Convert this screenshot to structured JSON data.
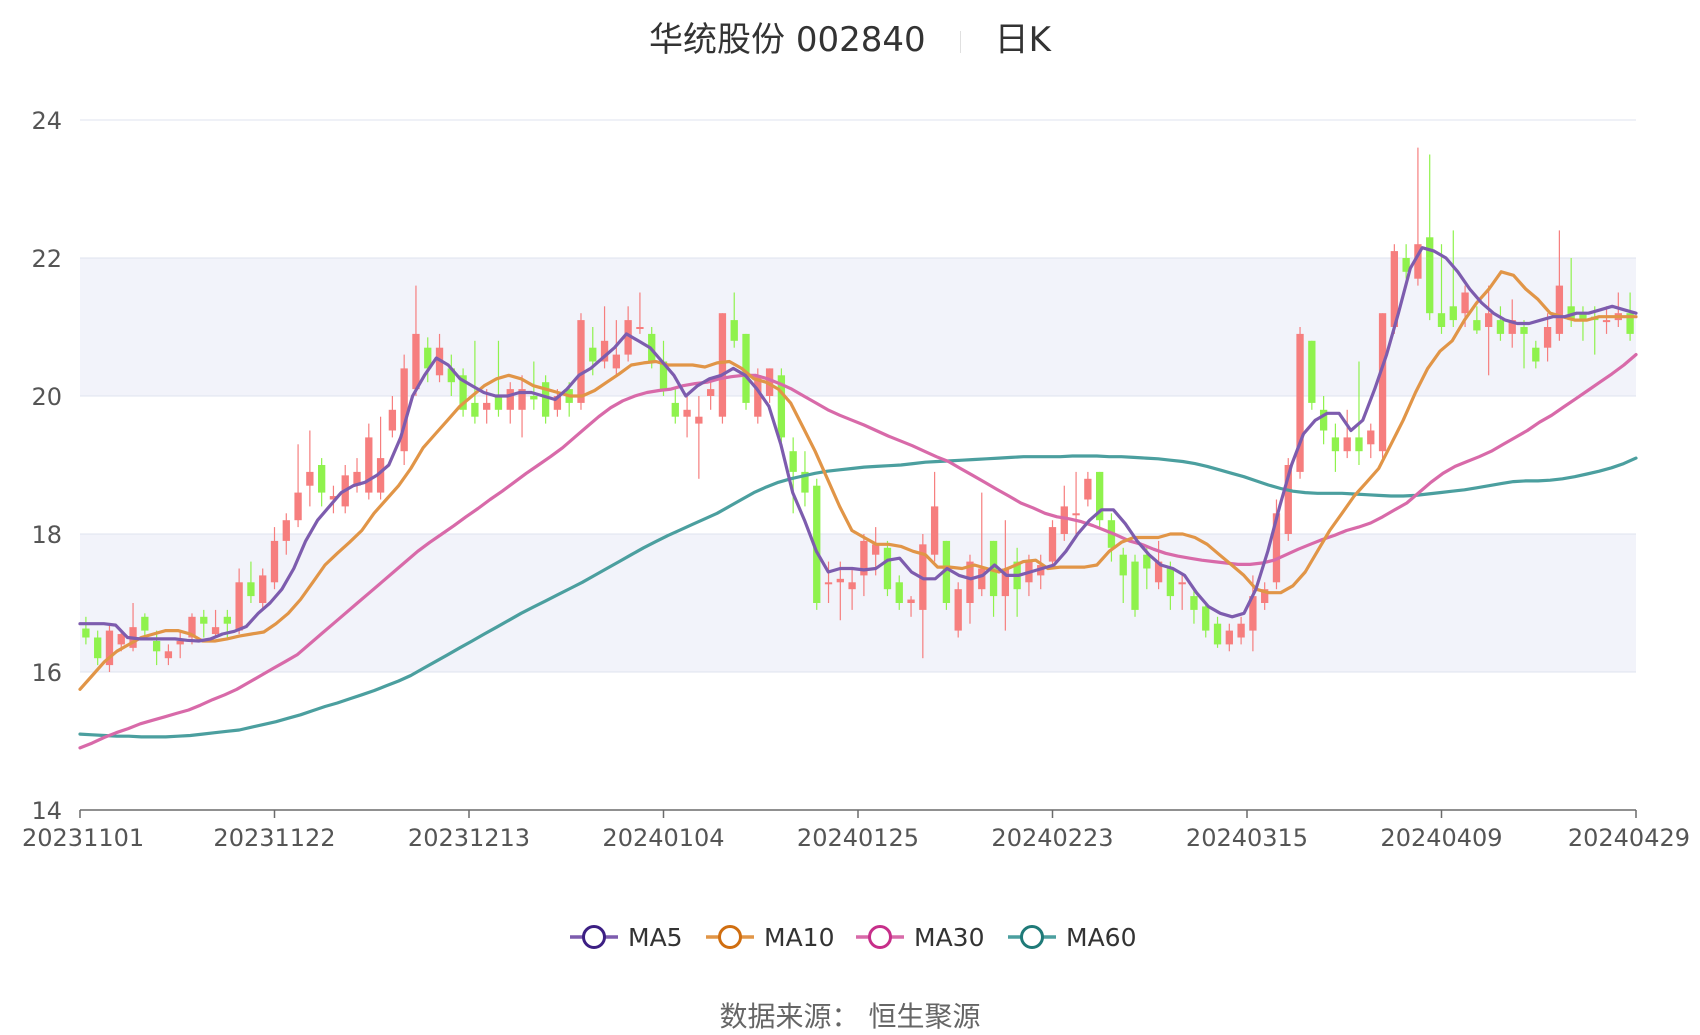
{
  "header": {
    "title": "华统股份 002840",
    "period": "日K"
  },
  "source": "数据来源： 恒生聚源",
  "chart_data": {
    "type": "candlestick",
    "ylim": [
      14,
      24
    ],
    "y_ticks": [
      "14",
      "16",
      "18",
      "20",
      "22",
      "24"
    ],
    "x_ticks": [
      "20231101",
      "20231122",
      "20231213",
      "20240104",
      "20240125",
      "20240223",
      "20240315",
      "20240409",
      "20240429"
    ],
    "colors": {
      "up": "#f67e7e",
      "down": "#8ff24d",
      "MA5": "#7d5cae",
      "MA10": "#e19547",
      "MA30": "#d86aa9",
      "MA60": "#4b9f9f",
      "band": "#f2f3fa",
      "grid": "#dfe3ef",
      "axis": "#6b6b6b"
    },
    "legend": [
      {
        "name": "MA5",
        "color": "#7d5cae",
        "ring": "#3c1f83"
      },
      {
        "name": "MA10",
        "color": "#e19547",
        "ring": "#d06e10"
      },
      {
        "name": "MA30",
        "color": "#d86aa9",
        "ring": "#c72f8a"
      },
      {
        "name": "MA60",
        "color": "#4b9f9f",
        "ring": "#1f7a78"
      }
    ],
    "candles": [
      {
        "o": 16.63,
        "c": 16.5,
        "h": 16.8,
        "l": 16.4
      },
      {
        "o": 16.5,
        "c": 16.2,
        "h": 16.6,
        "l": 16.1
      },
      {
        "o": 16.1,
        "c": 16.6,
        "h": 16.7,
        "l": 16.0
      },
      {
        "o": 16.4,
        "c": 16.55,
        "h": 16.6,
        "l": 16.3
      },
      {
        "o": 16.35,
        "c": 16.65,
        "h": 17.0,
        "l": 16.3
      },
      {
        "o": 16.8,
        "c": 16.6,
        "h": 16.85,
        "l": 16.5
      },
      {
        "o": 16.45,
        "c": 16.3,
        "h": 16.6,
        "l": 16.1
      },
      {
        "o": 16.2,
        "c": 16.3,
        "h": 16.4,
        "l": 16.1
      },
      {
        "o": 16.4,
        "c": 16.45,
        "h": 16.6,
        "l": 16.2
      },
      {
        "o": 16.5,
        "c": 16.8,
        "h": 16.85,
        "l": 16.4
      },
      {
        "o": 16.8,
        "c": 16.7,
        "h": 16.9,
        "l": 16.5
      },
      {
        "o": 16.55,
        "c": 16.65,
        "h": 16.9,
        "l": 16.5
      },
      {
        "o": 16.8,
        "c": 16.7,
        "h": 16.9,
        "l": 16.5
      },
      {
        "o": 16.6,
        "c": 17.3,
        "h": 17.5,
        "l": 16.55
      },
      {
        "o": 17.3,
        "c": 17.1,
        "h": 17.6,
        "l": 17.0
      },
      {
        "o": 17.0,
        "c": 17.4,
        "h": 17.5,
        "l": 16.9
      },
      {
        "o": 17.3,
        "c": 17.9,
        "h": 18.1,
        "l": 17.2
      },
      {
        "o": 17.9,
        "c": 18.2,
        "h": 18.3,
        "l": 17.7
      },
      {
        "o": 18.2,
        "c": 18.6,
        "h": 19.3,
        "l": 18.1
      },
      {
        "o": 18.7,
        "c": 18.9,
        "h": 19.5,
        "l": 18.4
      },
      {
        "o": 19.0,
        "c": 18.6,
        "h": 19.1,
        "l": 18.4
      },
      {
        "o": 18.5,
        "c": 18.55,
        "h": 18.7,
        "l": 18.3
      },
      {
        "o": 18.4,
        "c": 18.85,
        "h": 19.0,
        "l": 18.3
      },
      {
        "o": 18.7,
        "c": 18.9,
        "h": 19.1,
        "l": 18.6
      },
      {
        "o": 18.6,
        "c": 19.4,
        "h": 19.6,
        "l": 18.5
      },
      {
        "o": 18.6,
        "c": 19.1,
        "h": 19.7,
        "l": 18.5
      },
      {
        "o": 19.5,
        "c": 19.8,
        "h": 20.0,
        "l": 19.4
      },
      {
        "o": 19.2,
        "c": 20.4,
        "h": 20.6,
        "l": 19.0
      },
      {
        "o": 20.1,
        "c": 20.9,
        "h": 21.6,
        "l": 20.0
      },
      {
        "o": 20.7,
        "c": 20.4,
        "h": 20.85,
        "l": 20.2
      },
      {
        "o": 20.3,
        "c": 20.7,
        "h": 20.9,
        "l": 20.2
      },
      {
        "o": 20.4,
        "c": 20.2,
        "h": 20.6,
        "l": 20.0
      },
      {
        "o": 20.3,
        "c": 19.8,
        "h": 20.4,
        "l": 19.7
      },
      {
        "o": 19.9,
        "c": 19.7,
        "h": 20.8,
        "l": 19.6
      },
      {
        "o": 19.8,
        "c": 19.9,
        "h": 20.1,
        "l": 19.6
      },
      {
        "o": 20.0,
        "c": 19.8,
        "h": 20.8,
        "l": 19.7
      },
      {
        "o": 19.8,
        "c": 20.1,
        "h": 20.2,
        "l": 19.6
      },
      {
        "o": 19.8,
        "c": 20.1,
        "h": 20.3,
        "l": 19.4
      },
      {
        "o": 20.0,
        "c": 19.95,
        "h": 20.5,
        "l": 19.8
      },
      {
        "o": 20.2,
        "c": 19.7,
        "h": 20.3,
        "l": 19.6
      },
      {
        "o": 19.8,
        "c": 20.0,
        "h": 20.1,
        "l": 19.7
      },
      {
        "o": 20.1,
        "c": 19.9,
        "h": 20.2,
        "l": 19.7
      },
      {
        "o": 19.9,
        "c": 21.1,
        "h": 21.2,
        "l": 19.8
      },
      {
        "o": 20.7,
        "c": 20.5,
        "h": 21.0,
        "l": 20.3
      },
      {
        "o": 20.5,
        "c": 20.8,
        "h": 21.3,
        "l": 20.4
      },
      {
        "o": 20.4,
        "c": 20.6,
        "h": 21.1,
        "l": 20.3
      },
      {
        "o": 20.6,
        "c": 21.1,
        "h": 21.3,
        "l": 20.5
      },
      {
        "o": 21.0,
        "c": 21.0,
        "h": 21.5,
        "l": 20.9
      },
      {
        "o": 20.9,
        "c": 20.5,
        "h": 21.0,
        "l": 20.4
      },
      {
        "o": 20.5,
        "c": 20.1,
        "h": 20.8,
        "l": 20.0
      },
      {
        "o": 19.9,
        "c": 19.7,
        "h": 20.1,
        "l": 19.6
      },
      {
        "o": 19.7,
        "c": 19.8,
        "h": 20.0,
        "l": 19.4
      },
      {
        "o": 19.6,
        "c": 19.7,
        "h": 20.0,
        "l": 18.8
      },
      {
        "o": 20.0,
        "c": 20.1,
        "h": 20.2,
        "l": 19.8
      },
      {
        "o": 19.7,
        "c": 21.2,
        "h": 21.2,
        "l": 19.6
      },
      {
        "o": 21.1,
        "c": 20.8,
        "h": 21.5,
        "l": 20.7
      },
      {
        "o": 20.9,
        "c": 19.9,
        "h": 20.9,
        "l": 19.8
      },
      {
        "o": 19.7,
        "c": 20.3,
        "h": 20.4,
        "l": 19.6
      },
      {
        "o": 20.0,
        "c": 20.4,
        "h": 20.4,
        "l": 19.9
      },
      {
        "o": 20.3,
        "c": 19.4,
        "h": 20.4,
        "l": 19.3
      },
      {
        "o": 19.2,
        "c": 18.9,
        "h": 19.4,
        "l": 18.3
      },
      {
        "o": 18.9,
        "c": 18.6,
        "h": 19.2,
        "l": 18.4
      },
      {
        "o": 18.7,
        "c": 17.0,
        "h": 18.8,
        "l": 16.9
      },
      {
        "o": 17.3,
        "c": 17.3,
        "h": 17.6,
        "l": 17.0
      },
      {
        "o": 17.3,
        "c": 17.35,
        "h": 17.6,
        "l": 16.75
      },
      {
        "o": 17.2,
        "c": 17.3,
        "h": 17.5,
        "l": 16.9
      },
      {
        "o": 17.4,
        "c": 17.9,
        "h": 18.0,
        "l": 17.1
      },
      {
        "o": 17.7,
        "c": 17.85,
        "h": 18.1,
        "l": 17.4
      },
      {
        "o": 17.8,
        "c": 17.2,
        "h": 17.9,
        "l": 17.1
      },
      {
        "o": 17.3,
        "c": 17.0,
        "h": 17.4,
        "l": 16.9
      },
      {
        "o": 17.0,
        "c": 17.05,
        "h": 17.1,
        "l": 16.8
      },
      {
        "o": 16.9,
        "c": 17.85,
        "h": 18.0,
        "l": 16.2
      },
      {
        "o": 17.7,
        "c": 18.4,
        "h": 18.9,
        "l": 17.6
      },
      {
        "o": 17.9,
        "c": 17.0,
        "h": 17.9,
        "l": 16.9
      },
      {
        "o": 16.6,
        "c": 17.2,
        "h": 17.3,
        "l": 16.5
      },
      {
        "o": 17.0,
        "c": 17.6,
        "h": 17.7,
        "l": 16.7
      },
      {
        "o": 17.2,
        "c": 17.5,
        "h": 18.6,
        "l": 17.1
      },
      {
        "o": 17.9,
        "c": 17.1,
        "h": 17.9,
        "l": 16.8
      },
      {
        "o": 17.1,
        "c": 17.5,
        "h": 18.2,
        "l": 16.6
      },
      {
        "o": 17.6,
        "c": 17.2,
        "h": 17.8,
        "l": 16.8
      },
      {
        "o": 17.3,
        "c": 17.6,
        "h": 17.7,
        "l": 17.1
      },
      {
        "o": 17.4,
        "c": 17.55,
        "h": 17.7,
        "l": 17.2
      },
      {
        "o": 17.6,
        "c": 18.1,
        "h": 18.2,
        "l": 17.5
      },
      {
        "o": 18.0,
        "c": 18.4,
        "h": 18.7,
        "l": 17.9
      },
      {
        "o": 18.3,
        "c": 18.3,
        "h": 18.9,
        "l": 18.0
      },
      {
        "o": 18.5,
        "c": 18.8,
        "h": 18.9,
        "l": 18.4
      },
      {
        "o": 18.9,
        "c": 18.2,
        "h": 18.9,
        "l": 18.1
      },
      {
        "o": 18.2,
        "c": 17.8,
        "h": 18.3,
        "l": 17.6
      },
      {
        "o": 17.7,
        "c": 17.4,
        "h": 17.8,
        "l": 17.0
      },
      {
        "o": 17.6,
        "c": 16.9,
        "h": 17.7,
        "l": 16.8
      },
      {
        "o": 17.7,
        "c": 17.5,
        "h": 17.8,
        "l": 17.2
      },
      {
        "o": 17.3,
        "c": 17.6,
        "h": 17.9,
        "l": 17.2
      },
      {
        "o": 17.5,
        "c": 17.1,
        "h": 17.6,
        "l": 16.9
      },
      {
        "o": 17.3,
        "c": 17.3,
        "h": 17.4,
        "l": 16.9
      },
      {
        "o": 17.1,
        "c": 16.9,
        "h": 17.2,
        "l": 16.7
      },
      {
        "o": 16.95,
        "c": 16.6,
        "h": 17.0,
        "l": 16.5
      },
      {
        "o": 16.7,
        "c": 16.4,
        "h": 16.8,
        "l": 16.35
      },
      {
        "o": 16.4,
        "c": 16.6,
        "h": 16.7,
        "l": 16.3
      },
      {
        "o": 16.5,
        "c": 16.7,
        "h": 16.8,
        "l": 16.4
      },
      {
        "o": 16.6,
        "c": 17.1,
        "h": 17.4,
        "l": 16.3
      },
      {
        "o": 17.0,
        "c": 17.2,
        "h": 17.3,
        "l": 16.9
      },
      {
        "o": 17.3,
        "c": 18.3,
        "h": 18.5,
        "l": 17.2
      },
      {
        "o": 18.0,
        "c": 19.0,
        "h": 19.1,
        "l": 17.9
      },
      {
        "o": 18.9,
        "c": 20.9,
        "h": 21.0,
        "l": 18.8
      },
      {
        "o": 20.8,
        "c": 19.9,
        "h": 20.8,
        "l": 19.8
      },
      {
        "o": 19.8,
        "c": 19.5,
        "h": 20.0,
        "l": 19.3
      },
      {
        "o": 19.4,
        "c": 19.2,
        "h": 19.6,
        "l": 18.9
      },
      {
        "o": 19.2,
        "c": 19.4,
        "h": 19.8,
        "l": 19.1
      },
      {
        "o": 19.4,
        "c": 19.2,
        "h": 20.5,
        "l": 19.0
      },
      {
        "o": 19.3,
        "c": 19.5,
        "h": 19.6,
        "l": 19.1
      },
      {
        "o": 19.2,
        "c": 21.2,
        "h": 21.2,
        "l": 19.1
      },
      {
        "o": 21.0,
        "c": 22.1,
        "h": 22.2,
        "l": 20.9
      },
      {
        "o": 22.0,
        "c": 21.8,
        "h": 22.2,
        "l": 21.7
      },
      {
        "o": 21.7,
        "c": 22.2,
        "h": 23.6,
        "l": 21.6
      },
      {
        "o": 22.3,
        "c": 21.2,
        "h": 23.5,
        "l": 21.1
      },
      {
        "o": 21.2,
        "c": 21.0,
        "h": 22.2,
        "l": 20.9
      },
      {
        "o": 21.3,
        "c": 21.1,
        "h": 22.4,
        "l": 21.0
      },
      {
        "o": 21.2,
        "c": 21.5,
        "h": 21.6,
        "l": 21.0
      },
      {
        "o": 21.1,
        "c": 20.95,
        "h": 21.3,
        "l": 20.9
      },
      {
        "o": 21.0,
        "c": 21.2,
        "h": 21.6,
        "l": 20.3
      },
      {
        "o": 21.1,
        "c": 20.9,
        "h": 21.3,
        "l": 20.8
      },
      {
        "o": 20.9,
        "c": 21.1,
        "h": 21.4,
        "l": 20.7
      },
      {
        "o": 21.0,
        "c": 20.9,
        "h": 21.1,
        "l": 20.4
      },
      {
        "o": 20.7,
        "c": 20.5,
        "h": 20.8,
        "l": 20.4
      },
      {
        "o": 20.7,
        "c": 21.0,
        "h": 21.2,
        "l": 20.5
      },
      {
        "o": 20.9,
        "c": 21.6,
        "h": 22.4,
        "l": 20.8
      },
      {
        "o": 21.3,
        "c": 21.1,
        "h": 22.0,
        "l": 21.0
      },
      {
        "o": 21.2,
        "c": 21.1,
        "h": 21.3,
        "l": 20.8
      },
      {
        "o": 21.15,
        "c": 21.1,
        "h": 21.3,
        "l": 20.6
      },
      {
        "o": 21.1,
        "c": 21.1,
        "h": 21.3,
        "l": 20.9
      },
      {
        "o": 21.1,
        "c": 21.2,
        "h": 21.5,
        "l": 21.0
      },
      {
        "o": 21.2,
        "c": 20.9,
        "h": 21.5,
        "l": 20.8
      }
    ],
    "MA5": [
      16.7,
      16.7,
      16.7,
      16.68,
      16.5,
      16.48,
      16.48,
      16.48,
      16.48,
      16.46,
      16.45,
      16.48,
      16.55,
      16.59,
      16.66,
      16.85,
      17.0,
      17.2,
      17.5,
      17.9,
      18.2,
      18.4,
      18.6,
      18.7,
      18.75,
      18.85,
      19.0,
      19.4,
      20.0,
      20.3,
      20.55,
      20.45,
      20.25,
      20.15,
      20.05,
      20.0,
      20.0,
      20.05,
      20.05,
      20.0,
      19.95,
      20.1,
      20.3,
      20.4,
      20.55,
      20.7,
      20.9,
      20.8,
      20.7,
      20.5,
      20.3,
      20.0,
      20.15,
      20.25,
      20.3,
      20.4,
      20.3,
      20.1,
      19.85,
      19.3,
      18.6,
      18.2,
      17.75,
      17.45,
      17.5,
      17.5,
      17.48,
      17.5,
      17.62,
      17.65,
      17.45,
      17.35,
      17.35,
      17.5,
      17.4,
      17.35,
      17.4,
      17.55,
      17.4,
      17.4,
      17.45,
      17.5,
      17.55,
      17.75,
      18.0,
      18.2,
      18.35,
      18.35,
      18.15,
      17.9,
      17.7,
      17.55,
      17.5,
      17.4,
      17.15,
      16.95,
      16.85,
      16.8,
      16.85,
      17.2,
      17.75,
      18.4,
      19.0,
      19.45,
      19.65,
      19.75,
      19.75,
      19.5,
      19.65,
      20.1,
      20.6,
      21.2,
      21.85,
      22.15,
      22.1,
      22.0,
      21.8,
      21.55,
      21.35,
      21.2,
      21.1,
      21.05,
      21.05,
      21.1,
      21.15,
      21.15,
      21.2,
      21.2,
      21.25,
      21.3,
      21.25,
      21.2
    ],
    "MA10": [
      15.75,
      15.95,
      16.15,
      16.3,
      16.4,
      16.5,
      16.55,
      16.6,
      16.6,
      16.55,
      16.45,
      16.45,
      16.48,
      16.52,
      16.55,
      16.58,
      16.7,
      16.85,
      17.05,
      17.3,
      17.55,
      17.72,
      17.88,
      18.05,
      18.3,
      18.5,
      18.7,
      18.95,
      19.25,
      19.45,
      19.65,
      19.85,
      20.0,
      20.15,
      20.25,
      20.3,
      20.25,
      20.15,
      20.1,
      20.05,
      20.0,
      20.0,
      20.08,
      20.2,
      20.32,
      20.45,
      20.48,
      20.5,
      20.45,
      20.45,
      20.45,
      20.42,
      20.48,
      20.5,
      20.4,
      20.25,
      20.2,
      20.1,
      19.9,
      19.55,
      19.2,
      18.8,
      18.4,
      18.05,
      17.95,
      17.85,
      17.85,
      17.82,
      17.75,
      17.7,
      17.52,
      17.52,
      17.5,
      17.55,
      17.5,
      17.45,
      17.52,
      17.6,
      17.62,
      17.5,
      17.52,
      17.52,
      17.52,
      17.55,
      17.75,
      17.88,
      17.95,
      17.95,
      17.95,
      18.0,
      18.0,
      17.95,
      17.85,
      17.7,
      17.55,
      17.4,
      17.2,
      17.15,
      17.15,
      17.25,
      17.45,
      17.75,
      18.05,
      18.3,
      18.55,
      18.75,
      18.95,
      19.3,
      19.65,
      20.05,
      20.4,
      20.65,
      20.8,
      21.1,
      21.35,
      21.55,
      21.8,
      21.75,
      21.55,
      21.4,
      21.2,
      21.15,
      21.1,
      21.1,
      21.15,
      21.15,
      21.15,
      21.15
    ],
    "MA30": [
      14.9,
      14.97,
      15.05,
      15.12,
      15.18,
      15.25,
      15.3,
      15.35,
      15.4,
      15.45,
      15.52,
      15.6,
      15.67,
      15.75,
      15.85,
      15.95,
      16.05,
      16.15,
      16.25,
      16.4,
      16.55,
      16.7,
      16.85,
      17.0,
      17.15,
      17.3,
      17.45,
      17.6,
      17.75,
      17.88,
      18.0,
      18.12,
      18.25,
      18.37,
      18.5,
      18.62,
      18.75,
      18.88,
      19.0,
      19.12,
      19.25,
      19.4,
      19.55,
      19.7,
      19.83,
      19.93,
      20.0,
      20.05,
      20.08,
      20.1,
      20.15,
      20.18,
      20.2,
      20.25,
      20.28,
      20.3,
      20.3,
      20.25,
      20.18,
      20.1,
      20.0,
      19.9,
      19.8,
      19.72,
      19.65,
      19.58,
      19.5,
      19.42,
      19.35,
      19.28,
      19.2,
      19.12,
      19.05,
      18.95,
      18.85,
      18.75,
      18.65,
      18.55,
      18.45,
      18.38,
      18.3,
      18.25,
      18.22,
      18.18,
      18.12,
      18.05,
      17.98,
      17.9,
      17.85,
      17.78,
      17.72,
      17.68,
      17.65,
      17.62,
      17.6,
      17.58,
      17.56,
      17.56,
      17.58,
      17.62,
      17.7,
      17.78,
      17.85,
      17.92,
      17.98,
      18.05,
      18.1,
      18.16,
      18.25,
      18.35,
      18.45,
      18.6,
      18.75,
      18.88,
      18.98,
      19.05,
      19.12,
      19.2,
      19.3,
      19.4,
      19.5,
      19.62,
      19.72,
      19.84,
      19.96,
      20.08,
      20.2,
      20.32,
      20.45,
      20.6
    ],
    "MA60": [
      15.1,
      15.09,
      15.08,
      15.07,
      15.07,
      15.06,
      15.06,
      15.06,
      15.07,
      15.08,
      15.1,
      15.12,
      15.14,
      15.16,
      15.2,
      15.24,
      15.28,
      15.33,
      15.38,
      15.44,
      15.5,
      15.55,
      15.61,
      15.67,
      15.73,
      15.8,
      15.87,
      15.95,
      16.05,
      16.15,
      16.25,
      16.35,
      16.45,
      16.55,
      16.65,
      16.75,
      16.85,
      16.94,
      17.03,
      17.12,
      17.21,
      17.3,
      17.4,
      17.5,
      17.6,
      17.7,
      17.8,
      17.89,
      17.98,
      18.06,
      18.14,
      18.22,
      18.3,
      18.4,
      18.5,
      18.6,
      18.68,
      18.75,
      18.8,
      18.84,
      18.88,
      18.91,
      18.93,
      18.95,
      18.97,
      18.98,
      18.99,
      19.0,
      19.02,
      19.04,
      19.05,
      19.06,
      19.07,
      19.08,
      19.09,
      19.1,
      19.11,
      19.12,
      19.12,
      19.12,
      19.12,
      19.13,
      19.13,
      19.13,
      19.12,
      19.12,
      19.11,
      19.1,
      19.09,
      19.07,
      19.05,
      19.02,
      18.98,
      18.93,
      18.88,
      18.83,
      18.77,
      18.71,
      18.66,
      18.62,
      18.6,
      18.59,
      18.59,
      18.59,
      18.58,
      18.57,
      18.56,
      18.55,
      18.55,
      18.56,
      18.58,
      18.6,
      18.62,
      18.64,
      18.67,
      18.7,
      18.73,
      18.76,
      18.77,
      18.77,
      18.78,
      18.8,
      18.83,
      18.87,
      18.91,
      18.96,
      19.02,
      19.1
    ]
  }
}
